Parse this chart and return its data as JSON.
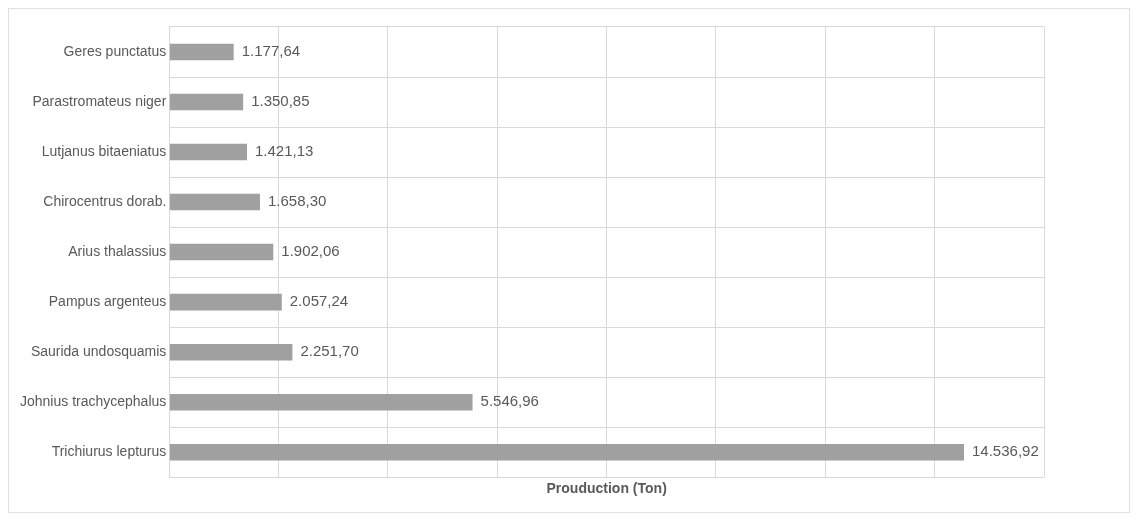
{
  "chart_data": {
    "type": "bar",
    "orientation": "horizontal",
    "xlabel": "Prouduction (Ton)",
    "categories": [
      "Geres punctatus",
      "Parastromateus niger",
      "Lutjanus bitaeniatus",
      "Chirocentrus dorab.",
      "Arius thalassius",
      "Pampus argenteus",
      "Saurida undosquamis",
      "Johnius trachycephalus",
      "Trichiurus lepturus"
    ],
    "values": [
      1177.64,
      1350.85,
      1421.13,
      1658.3,
      1902.06,
      2057.24,
      2251.7,
      5546.96,
      14536.92
    ],
    "value_labels": [
      "1.177,64",
      "1.350,85",
      "1.421,13",
      "1.658,30",
      "1.902,06",
      "2.057,24",
      "2.251,70",
      "5.546,96",
      "14.536,92"
    ],
    "color": "#a0a0a0",
    "xlim": [
      0,
      16000
    ],
    "xticks": [
      {
        "value": 0,
        "label": null
      },
      {
        "value": 2000,
        "label": null
      },
      {
        "value": 4000,
        "label": null
      },
      {
        "value": 6000,
        "label": null
      },
      {
        "value": 8000,
        "label": null
      },
      {
        "value": 10000,
        "label": null
      },
      {
        "value": 12000,
        "label": null
      },
      {
        "value": 14000,
        "label": null
      },
      {
        "value": 16000,
        "label": null
      }
    ],
    "tick_labels": "y",
    "grid": true,
    "legend": false
  }
}
